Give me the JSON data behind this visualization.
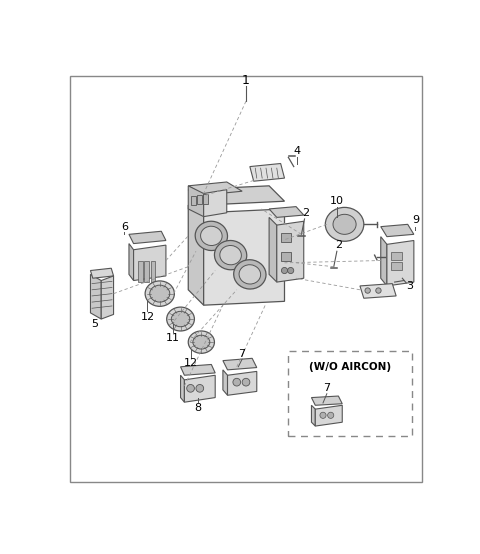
{
  "bg_color": "#ffffff",
  "border_color": "#aaaaaa",
  "fig_width": 4.8,
  "fig_height": 5.54,
  "dpi": 100,
  "line_color": "#555555",
  "dash_color": "#999999",
  "wo_aircon_text": "(W/O AIRCON)"
}
